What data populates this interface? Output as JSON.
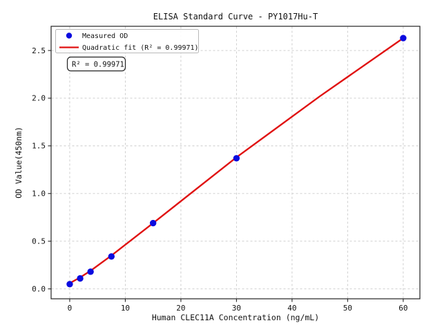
{
  "chart_data": {
    "type": "scatter",
    "title": "ELISA Standard Curve - PY1017Hu-T",
    "xlabel": "Human CLEC11A Concentration (ng/mL)",
    "ylabel": "OD Value(450nm)",
    "xlim": [
      -3.35,
      63.0
    ],
    "ylim": [
      -0.104,
      2.754
    ],
    "grid": true,
    "grid_color": "#c9c9c9",
    "x_ticks": [
      0,
      10,
      20,
      30,
      40,
      50,
      60
    ],
    "x_tick_labels": [
      "0",
      "10",
      "20",
      "30",
      "40",
      "50",
      "60"
    ],
    "y_ticks": [
      0.0,
      0.5,
      1.0,
      1.5,
      2.0,
      2.5
    ],
    "y_tick_labels": [
      "0.0",
      "0.5",
      "1.0",
      "1.5",
      "2.0",
      "2.5"
    ],
    "legend": {
      "position": "upper left"
    },
    "annotation": {
      "text": "R² = 0.99971"
    },
    "series": [
      {
        "name": "Measured OD",
        "type": "scatter",
        "color": "#0b0bdf",
        "x": [
          0,
          1.875,
          3.75,
          7.5,
          15,
          30,
          60
        ],
        "y": [
          0.05,
          0.11,
          0.18,
          0.34,
          0.69,
          1.37,
          2.63
        ]
      },
      {
        "name": "Quadratic fit (R² = 0.99971)",
        "type": "line",
        "color": "#e01010",
        "x": [
          0,
          1.875,
          3.75,
          7.5,
          15,
          30,
          45,
          60
        ],
        "y": [
          0.06,
          0.12,
          0.19,
          0.35,
          0.69,
          1.38,
          2.02,
          2.63
        ]
      }
    ]
  }
}
